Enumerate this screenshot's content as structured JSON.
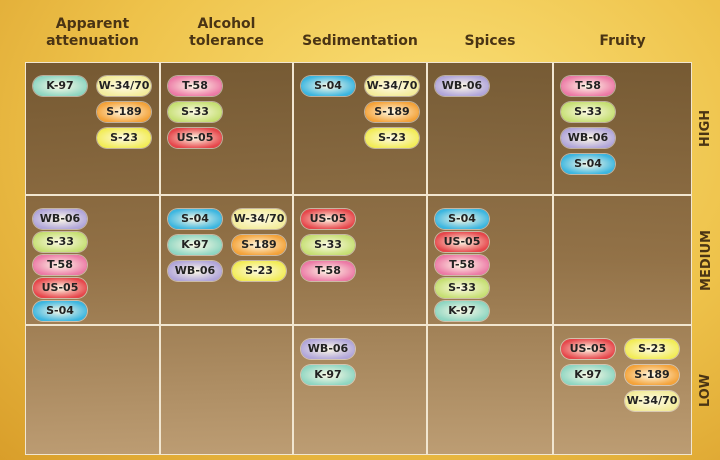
{
  "columns": [
    "Apparent attenuation",
    "Alcohol tolerance",
    "Sedimentation",
    "Spices",
    "Fruity"
  ],
  "rows": [
    "HIGH",
    "MEDIUM",
    "LOW"
  ],
  "colors": {
    "K-97": "#8fd6c2",
    "W-34/70": "#f3ec9c",
    "S-189": "#f4a33a",
    "S-23": "#f2ec58",
    "T-58": "#ec7aa6",
    "S-33": "#c6df74",
    "US-05": "#e6464b",
    "S-04": "#3cb6e0",
    "WB-06": "#b1a6da"
  },
  "cells": [
    [
      {
        "left": [
          "K-97"
        ],
        "right": [
          "W-34/70",
          "S-189",
          "S-23"
        ]
      },
      {
        "left": [
          "T-58",
          "S-33",
          "US-05"
        ],
        "right": []
      },
      {
        "left": [
          "S-04"
        ],
        "right": [
          "W-34/70",
          "S-189",
          "S-23"
        ]
      },
      {
        "left": [
          "WB-06"
        ],
        "right": []
      },
      {
        "left": [
          "T-58",
          "S-33",
          "WB-06",
          "S-04"
        ],
        "right": []
      }
    ],
    [
      {
        "left": [
          "WB-06",
          "S-33",
          "T-58",
          "US-05",
          "S-04"
        ],
        "right": []
      },
      {
        "left": [
          "S-04",
          "K-97",
          "WB-06"
        ],
        "right": [
          "W-34/70",
          "S-189",
          "S-23"
        ]
      },
      {
        "left": [
          "US-05",
          "S-33",
          "T-58"
        ],
        "right": []
      },
      {
        "left": [
          "S-04",
          "US-05",
          "T-58",
          "S-33",
          "K-97"
        ],
        "right": []
      },
      {
        "left": [],
        "right": []
      }
    ],
    [
      {
        "left": [],
        "right": []
      },
      {
        "left": [],
        "right": []
      },
      {
        "left": [
          "WB-06",
          "K-97"
        ],
        "right": []
      },
      {
        "left": [],
        "right": []
      },
      {
        "left": [
          "US-05",
          "K-97"
        ],
        "right": [
          "S-23",
          "S-189",
          "W-34/70"
        ]
      }
    ]
  ]
}
